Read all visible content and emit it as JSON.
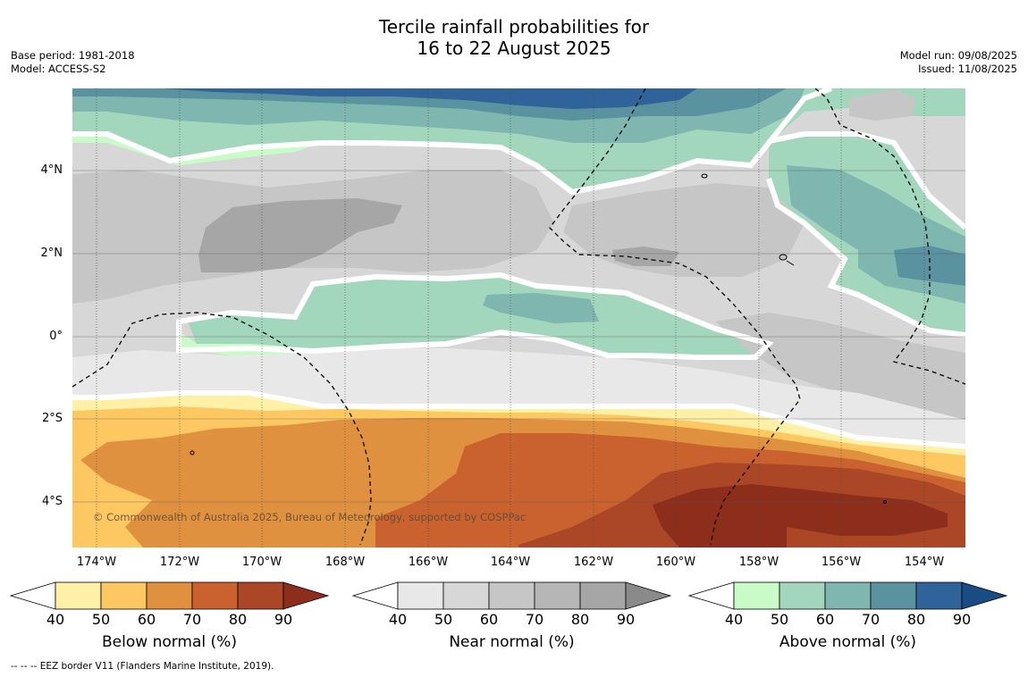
{
  "header": {
    "title_line1": "Tercile rainfall probabilities for",
    "title_line2": "16 to 22 August 2025",
    "base_period": "Base period: 1981-2018",
    "model": "Model: ACCESS-S2",
    "model_run": "Model run: 09/08/2025",
    "issued": "Issued: 11/08/2025"
  },
  "map": {
    "lat_labels": [
      "4°N",
      "2°N",
      "0°",
      "2°S",
      "4°S"
    ],
    "lon_labels": [
      "174°W",
      "172°W",
      "170°W",
      "168°W",
      "166°W",
      "164°W",
      "162°W",
      "160°W",
      "158°W",
      "156°W",
      "154°W"
    ],
    "copyright": "© Commonwealth of Australia 2025, Bureau of Meteorology, supported by COSPPac",
    "colors": {
      "below": [
        "#fff0a8",
        "#fdc862",
        "#e0913f",
        "#ca6230",
        "#ab4726",
        "#8d2e1c"
      ],
      "near": [
        "#e8e8e8",
        "#d7d7d7",
        "#c6c6c6",
        "#b6b6b6",
        "#a6a6a6",
        "#8a8a8a"
      ],
      "above": [
        "#c9fbc9",
        "#a3d7bd",
        "#7fb6b0",
        "#5a929f",
        "#2f6399",
        "#1a4c84"
      ]
    }
  },
  "colorbars": {
    "ticks": [
      "40",
      "50",
      "60",
      "70",
      "80",
      "90"
    ],
    "below_title": "Below normal (%)",
    "near_title": "Near normal (%)",
    "above_title": "Above normal (%)"
  },
  "footer": {
    "eez_note": "--  --  -- EEZ border V11 (Flanders Marine Institute, 2019)."
  }
}
